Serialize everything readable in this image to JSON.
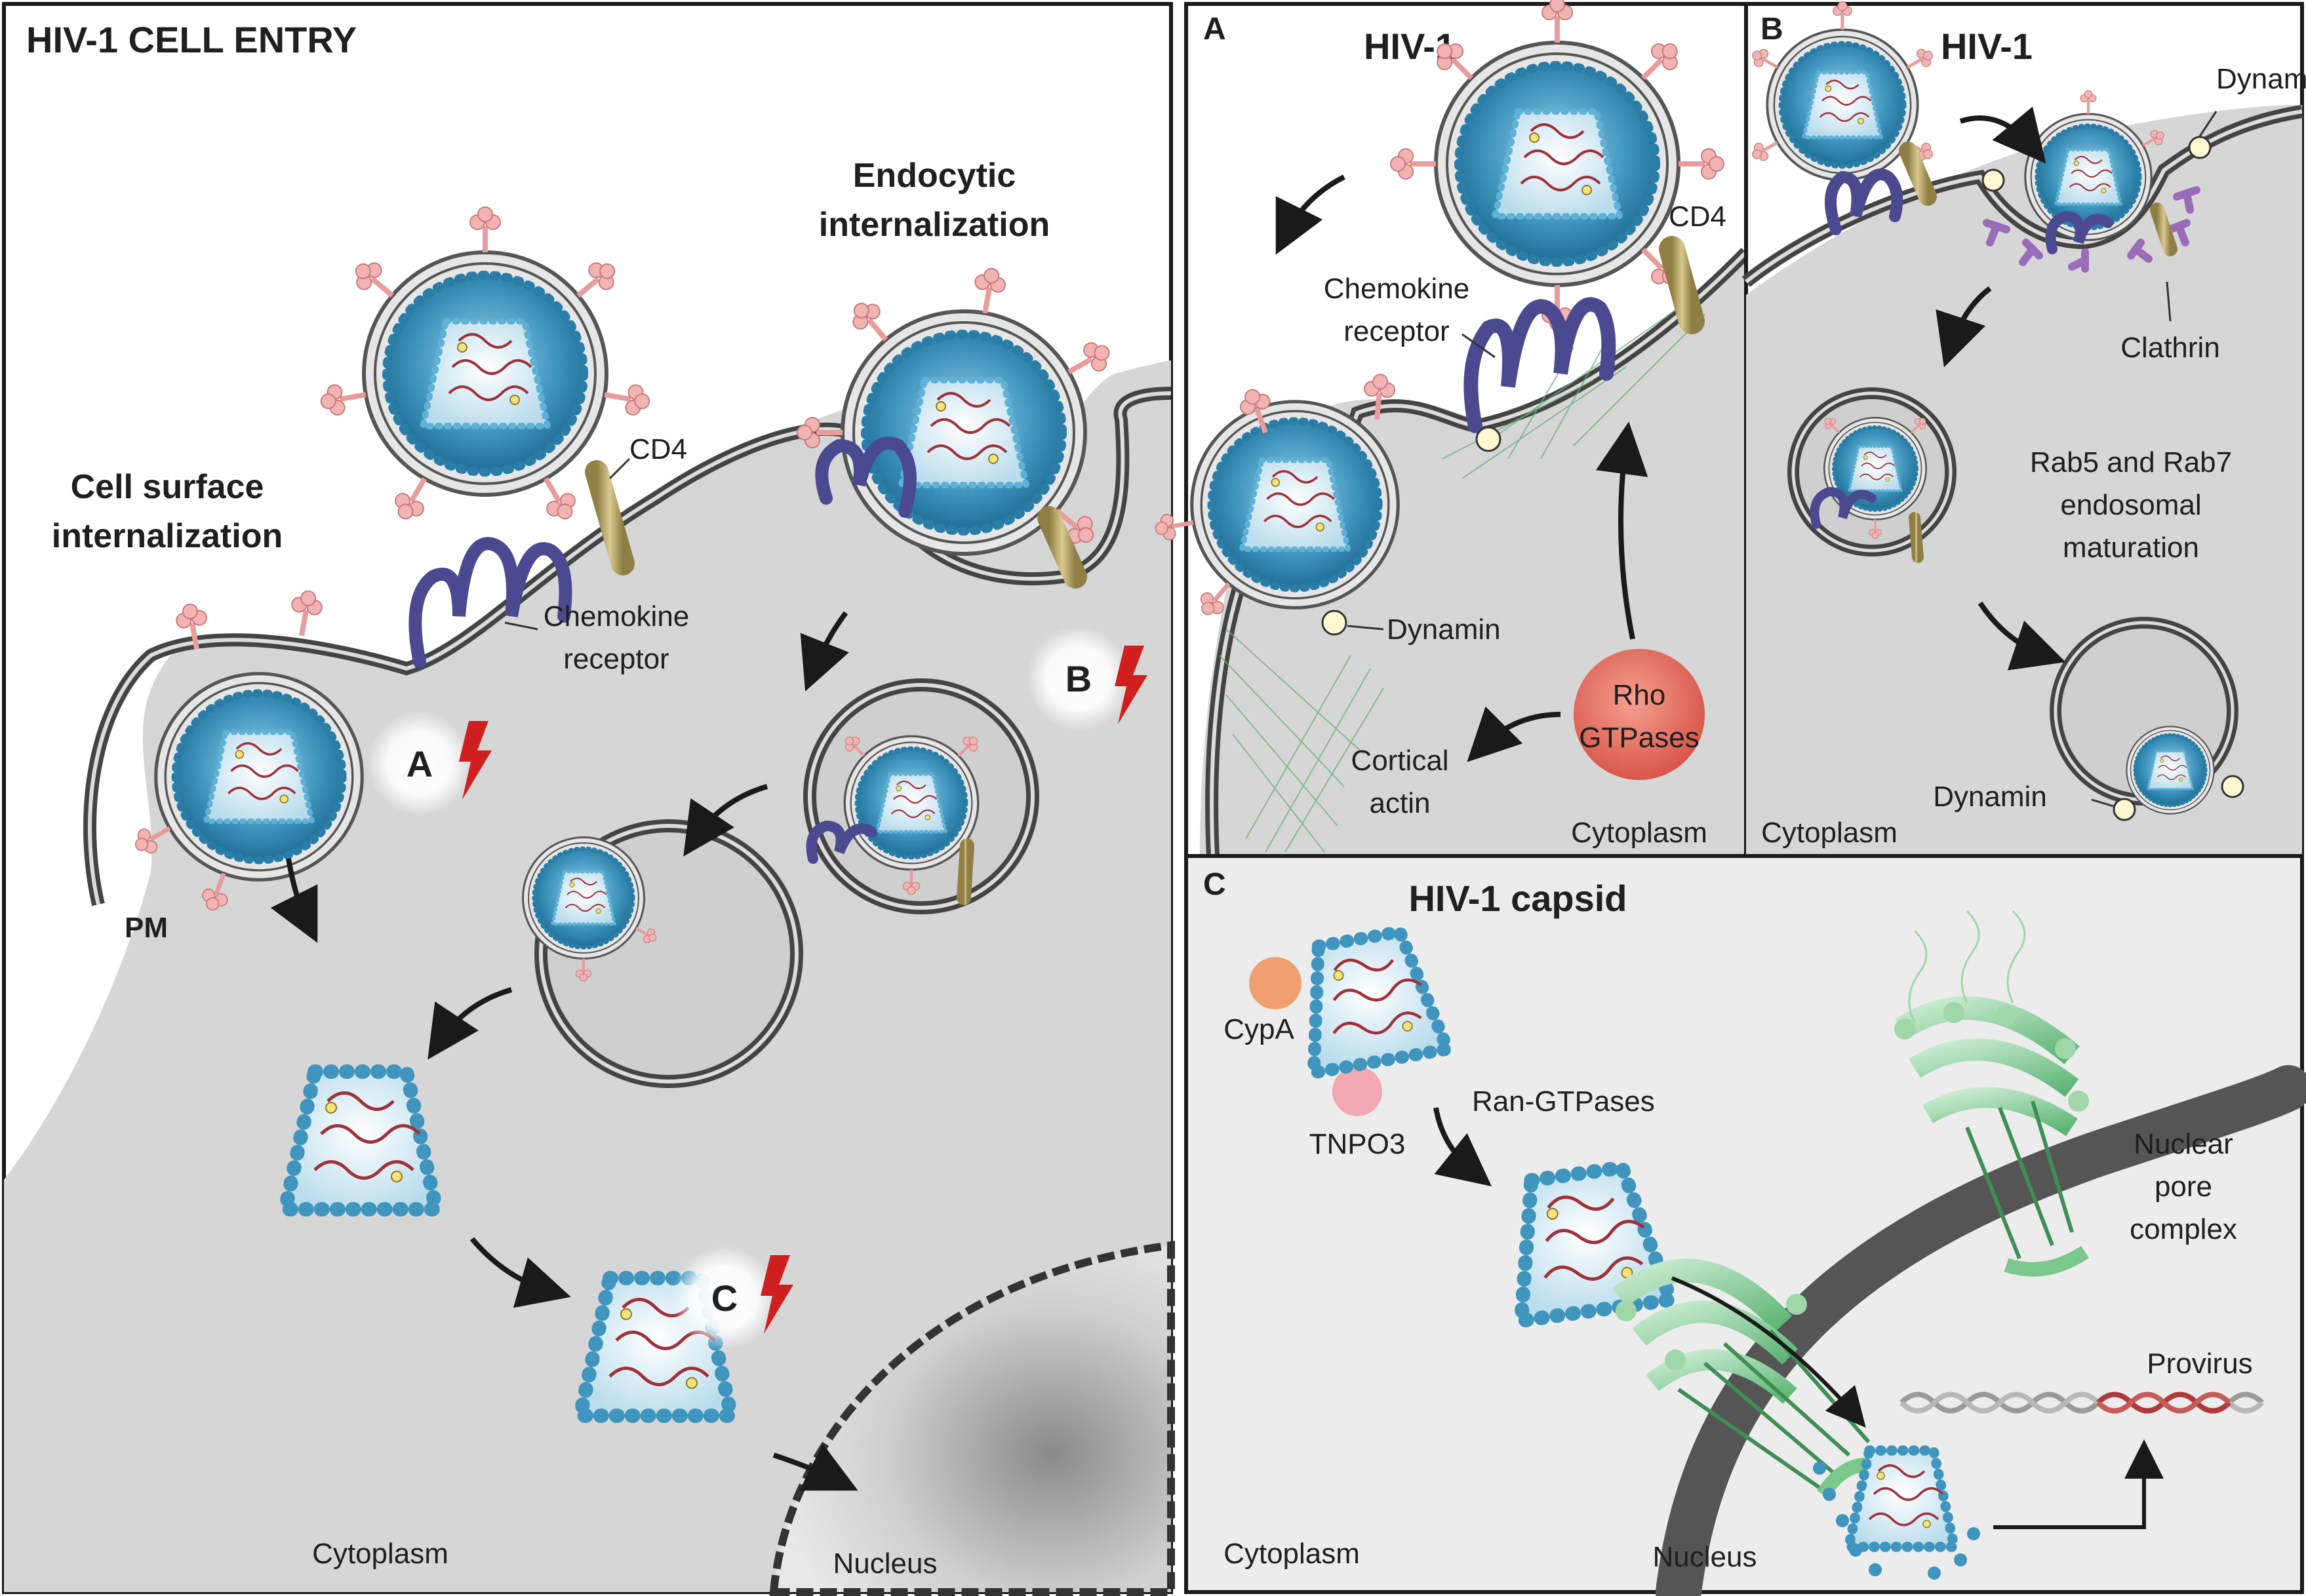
{
  "main_panel": {
    "title": "HIV-1 CELL ENTRY",
    "cell_surface_line1": "Cell surface",
    "cell_surface_line2": "internalization",
    "endocytic_line1": "Endocytic",
    "endocytic_line2": "internalization",
    "cd4": "CD4",
    "chemokine_line1": "Chemokine",
    "chemokine_line2": "receptor",
    "pm": "PM",
    "marker_a": "A",
    "marker_b": "B",
    "marker_c": "C",
    "cytoplasm": "Cytoplasm",
    "nucleus": "Nucleus"
  },
  "panel_a": {
    "letter": "A",
    "title": "HIV-1",
    "cd4": "CD4",
    "chemokine_line1": "Chemokine",
    "chemokine_line2": "receptor",
    "dynamin": "Dynamin",
    "rho_line1": "Rho",
    "rho_line2": "GTPases",
    "cortical_line1": "Cortical",
    "cortical_line2": "actin",
    "cytoplasm": "Cytoplasm"
  },
  "panel_b": {
    "letter": "B",
    "title": "HIV-1",
    "dynamin_top": "Dynamin",
    "clathrin": "Clathrin",
    "rab_line1": "Rab5 and Rab7",
    "rab_line2": "endosomal",
    "rab_line3": "maturation",
    "dynamin_bottom": "Dynamin",
    "cytoplasm": "Cytoplasm"
  },
  "panel_c": {
    "letter": "C",
    "title": "HIV-1 capsid",
    "cypa": "CypA",
    "tnpo3": "TNPO3",
    "ran": "Ran-GTPases",
    "npc_line1": "Nuclear",
    "npc_line2": "pore",
    "npc_line3": "complex",
    "provirus": "Provirus",
    "cytoplasm": "Cytoplasm",
    "nucleus": "Nucleus"
  },
  "colors": {
    "virion_blue": "#3a8fb7",
    "receptor_purple": "#4b4a91",
    "cd4_tan": "#b8a66a",
    "lightning_red": "#d01f1f",
    "rho_red": "#e06a5a",
    "pore_green": "#6cbf80",
    "clathrin_purple": "#9a6bb8",
    "cypa_orange": "#f0a070",
    "tnpo3_pink": "#f2a8b0"
  }
}
